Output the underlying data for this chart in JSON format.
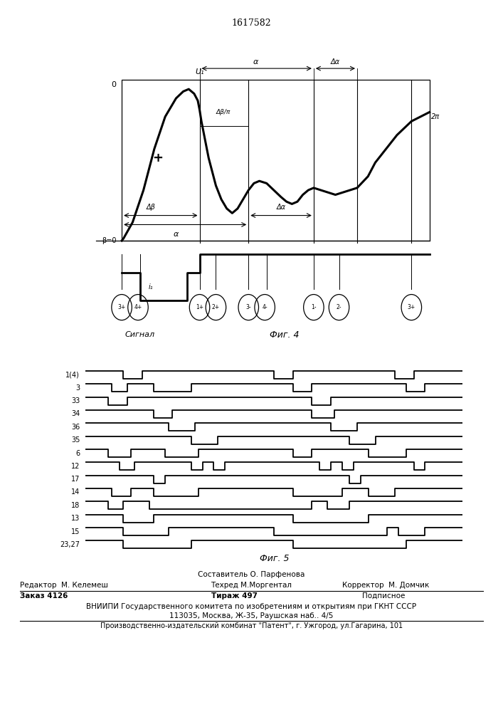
{
  "title": "1617582",
  "fig4_title": "Фиг. 4",
  "fig5_title": "Фиг. 5",
  "signal_label": "Сигнал",
  "fig4_labels": {
    "O": "0",
    "beta0": "β=0",
    "delta_beta": "Δβ",
    "alpha_label": "α",
    "delta_alpha": "Δα",
    "U1": "U₁",
    "delta_beta_pi": "Δβ/π",
    "alpha_top": "α",
    "delta_alpha_top": "Δα",
    "two_pi": "2π",
    "plus": "+",
    "i1": "i₁"
  },
  "fig5_channels": [
    "1(4)",
    "3",
    "33",
    "34",
    "36",
    "35",
    "6",
    "12",
    "17",
    "14",
    "18",
    "13",
    "15",
    "23,27"
  ],
  "bottom_text": {
    "sostavitel": "Составитель О. Парфенова",
    "tehred": "Техред М.Моргентал",
    "editor": "Редактор  М. Келемеш",
    "corrector": "Корректор  М. Домчик",
    "order": "Заказ 4126",
    "tirazh": "Тираж 497",
    "podpisnoe": "Подписное",
    "vniipи": "ВНИИПИ Государственного комитета по изобретениям и открытиям при ГКНТ СССР",
    "address": "113035, Москва, Ж-35, Раушская наб.. 4/5",
    "proizv": "Производственно-издательский комбинат \"Патент\", г. Ужгород, ул.Гагарина, 101"
  }
}
